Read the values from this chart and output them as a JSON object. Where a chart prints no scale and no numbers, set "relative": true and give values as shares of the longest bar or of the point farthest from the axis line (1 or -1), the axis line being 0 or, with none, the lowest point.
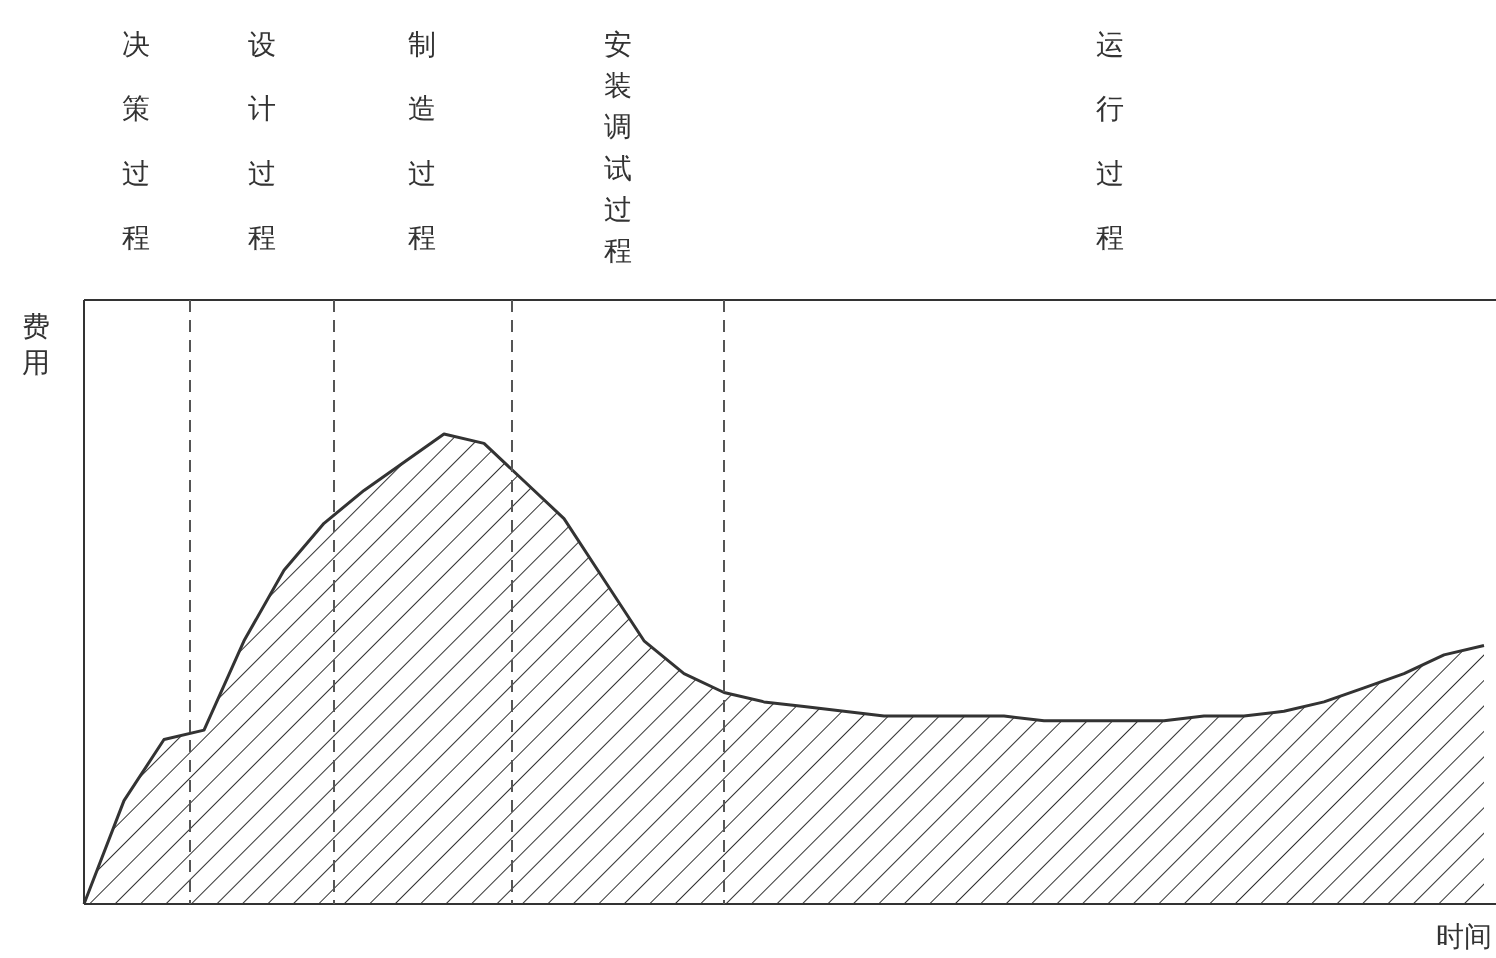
{
  "chart_data": {
    "type": "area",
    "relative": true,
    "xlabel": "时间",
    "ylabel": "费用",
    "categories": [
      null,
      null,
      null,
      null,
      null,
      null,
      null,
      null,
      null,
      null,
      null,
      null,
      null,
      null,
      null,
      null,
      null,
      null,
      null,
      null,
      null,
      null,
      null,
      null,
      null,
      null,
      null,
      null,
      null,
      null,
      null,
      null,
      null,
      null,
      null,
      null
    ],
    "series": [
      {
        "color": "#333333",
        "values": [
          0,
          0.22,
          0.35,
          0.37,
          0.56,
          0.71,
          0.81,
          0.88,
          0.94,
          1,
          0.98,
          0.9,
          0.82,
          0.69,
          0.56,
          0.49,
          0.45,
          0.43,
          0.42,
          0.41,
          0.4,
          0.4,
          0.4,
          0.4,
          0.39,
          0.39,
          0.39,
          0.39,
          0.4,
          0.4,
          0.41,
          0.43,
          0.46,
          0.49,
          0.53,
          0.55
        ]
      }
    ],
    "annotations": [
      "决策过程",
      "设计过程",
      "制造过程",
      "安装调试过程",
      "运行过程"
    ]
  }
}
